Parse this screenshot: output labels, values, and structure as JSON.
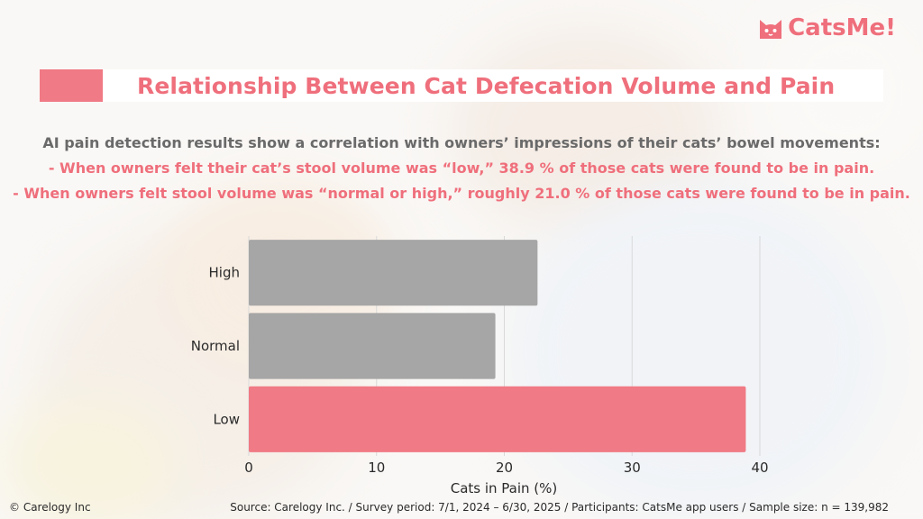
{
  "brand": {
    "logo_text": "CatsMe!",
    "accent_color": "#f07a85",
    "logo_icon": "cat-face-icon"
  },
  "title": "Relationship Between Cat Defecation Volume and Pain",
  "description": [
    "AI pain detection results show a correlation with owners’ impressions of their cats’ bowel movements:",
    "- When owners felt their cat’s stool volume was “low,” 38.9 % of those cats were found to be in pain.",
    "- When owners felt stool volume was “normal or high,” roughly 21.0 % of those cats were found to be in pain."
  ],
  "chart_data": {
    "type": "bar",
    "orientation": "horizontal",
    "categories": [
      "High",
      "Normal",
      "Low"
    ],
    "values": [
      22.6,
      19.3,
      38.9
    ],
    "colors": [
      "#a6a6a6",
      "#a6a6a6",
      "#f07a85"
    ],
    "xlabel": "Cats in Pain (%)",
    "ylabel": "",
    "xlim": [
      0,
      40
    ],
    "xticks": [
      0,
      10,
      20,
      30,
      40
    ],
    "grid": true,
    "legend": "none"
  },
  "footer": {
    "copyright": "© Carelogy Inc",
    "source": "Source: Carelogy Inc. / Survey period: 7/1, 2024 – 6/30, 2025 / Participants: CatsMe app users / Sample size: n = 139,982"
  }
}
